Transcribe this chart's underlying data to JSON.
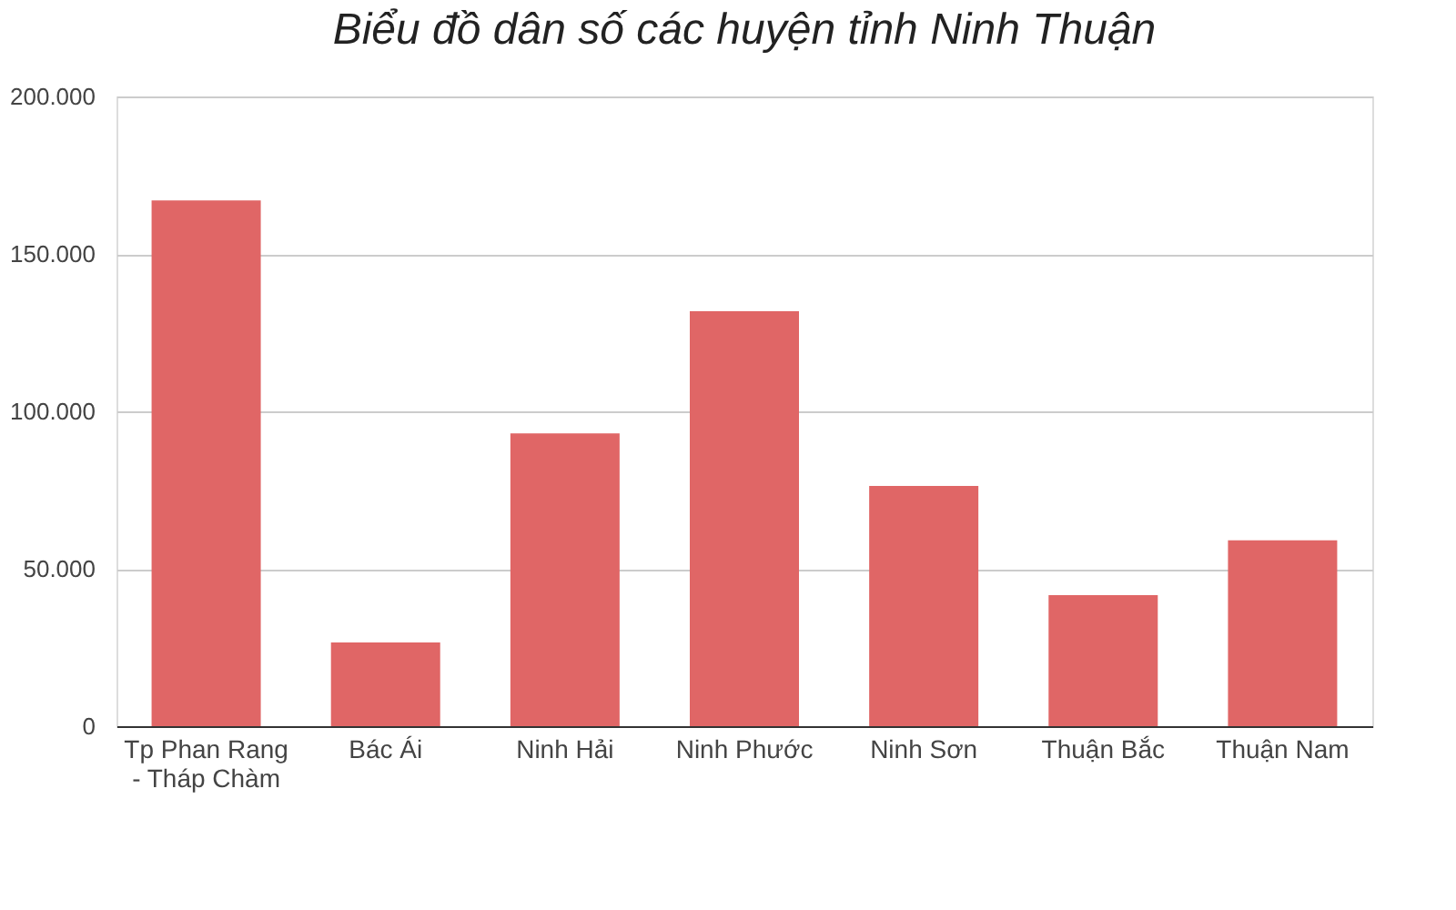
{
  "chart_data": {
    "type": "bar",
    "title": "Biểu đồ dân số các huyện tỉnh Ninh Thuận",
    "categories": [
      "Tp Phan Rang - Tháp Chàm",
      "Bác Ái",
      "Ninh Hải",
      "Ninh Phước",
      "Ninh Sơn",
      "Thuận Bắc",
      "Thuận Nam"
    ],
    "values": [
      167000,
      26600,
      93000,
      131800,
      76300,
      41600,
      59000
    ],
    "color": "#e06666",
    "ylim": [
      0,
      200000
    ],
    "yticks": [
      {
        "value": 0,
        "label": "0"
      },
      {
        "value": 50000,
        "label": "50.000"
      },
      {
        "value": 100000,
        "label": "100.000"
      },
      {
        "value": 150000,
        "label": "150.000"
      },
      {
        "value": 200000,
        "label": "200.000"
      }
    ],
    "grid": "y"
  }
}
